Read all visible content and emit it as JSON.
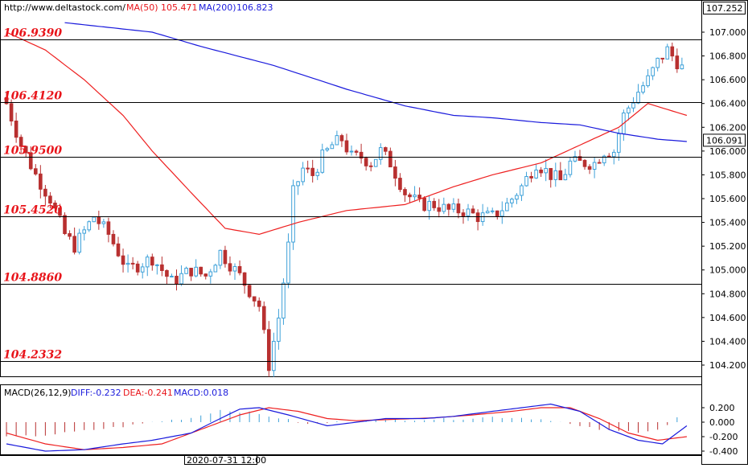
{
  "header": {
    "url": "http://www.deltastock.com/",
    "ma50_label": "MA(50)",
    "ma50_value": "105.471",
    "ma200_label": "MA(200)",
    "ma200_value": "106.823",
    "top_price": "107.252"
  },
  "macd_header": {
    "title": "MACD(26,12,9)",
    "diff": "DIFF:-0.232",
    "dea": "DEA:-0.241",
    "macd": "MACD:0.018"
  },
  "current_price": "106.091",
  "time_label": "2020-07-31 12:00",
  "colors": {
    "up": "#3ea1d9",
    "down": "#b83030",
    "ma50": "#ee2020",
    "ma200": "#1a1adc",
    "level": "#e8141a",
    "diff_line": "#1a1adc",
    "dea_line": "#ee2020",
    "hist_pos": "#3ea1d9",
    "hist_neg": "#b83030"
  },
  "chart_data": [
    {
      "type": "candlestick",
      "title": "",
      "ylim": [
        104.15,
        107.1
      ],
      "y_ticks": [
        "107.000",
        "106.800",
        "106.600",
        "106.400",
        "106.200",
        "106.000",
        "105.800",
        "105.600",
        "105.400",
        "105.200",
        "105.000",
        "104.800",
        "104.600",
        "104.400",
        "104.200"
      ],
      "levels": [
        "106.9390",
        "106.4120",
        "105.9500",
        "105.4520",
        "104.8860",
        "104.2332"
      ],
      "n_bars": 140,
      "close_anchors": [
        [
          0,
          106.4
        ],
        [
          3,
          106.05
        ],
        [
          6,
          105.8
        ],
        [
          9,
          105.6
        ],
        [
          12,
          105.3
        ],
        [
          14,
          105.2
        ],
        [
          18,
          105.45
        ],
        [
          21,
          105.3
        ],
        [
          25,
          105.0
        ],
        [
          30,
          105.1
        ],
        [
          34,
          104.9
        ],
        [
          38,
          105.0
        ],
        [
          41,
          104.95
        ],
        [
          44,
          105.15
        ],
        [
          48,
          104.95
        ],
        [
          52,
          104.7
        ],
        [
          54,
          104.2
        ],
        [
          56,
          104.6
        ],
        [
          58,
          105.2
        ],
        [
          59,
          105.65
        ],
        [
          61,
          105.85
        ],
        [
          63,
          105.8
        ],
        [
          65,
          105.95
        ],
        [
          67,
          106.05
        ],
        [
          69,
          106.1
        ],
        [
          71,
          105.95
        ],
        [
          73,
          105.95
        ],
        [
          75,
          105.9
        ],
        [
          77,
          106.0
        ],
        [
          79,
          105.9
        ],
        [
          82,
          105.65
        ],
        [
          85,
          105.55
        ],
        [
          88,
          105.55
        ],
        [
          91,
          105.5
        ],
        [
          94,
          105.5
        ],
        [
          97,
          105.45
        ],
        [
          100,
          105.45
        ],
        [
          103,
          105.55
        ],
        [
          106,
          105.7
        ],
        [
          109,
          105.9
        ],
        [
          112,
          105.8
        ],
        [
          114,
          105.75
        ],
        [
          116,
          105.9
        ],
        [
          118,
          105.9
        ],
        [
          121,
          105.9
        ],
        [
          123,
          106.0
        ],
        [
          125,
          106.0
        ],
        [
          127,
          106.3
        ],
        [
          130,
          106.5
        ],
        [
          132,
          106.6
        ],
        [
          134,
          106.75
        ],
        [
          136,
          106.85
        ],
        [
          137,
          106.8
        ],
        [
          140,
          106.65
        ],
        [
          143,
          106.55
        ]
      ],
      "ma50_anchors": [
        [
          0,
          107.0
        ],
        [
          8,
          106.85
        ],
        [
          16,
          106.6
        ],
        [
          24,
          106.3
        ],
        [
          30,
          106.0
        ],
        [
          38,
          105.65
        ],
        [
          45,
          105.35
        ],
        [
          52,
          105.3
        ],
        [
          60,
          105.4
        ],
        [
          70,
          105.5
        ],
        [
          82,
          105.55
        ],
        [
          92,
          105.7
        ],
        [
          100,
          105.8
        ],
        [
          110,
          105.9
        ],
        [
          118,
          106.05
        ],
        [
          126,
          106.2
        ],
        [
          132,
          106.4
        ],
        [
          140,
          106.3
        ]
      ],
      "ma200_anchors": [
        [
          12,
          107.08
        ],
        [
          30,
          107.0
        ],
        [
          40,
          106.88
        ],
        [
          55,
          106.72
        ],
        [
          70,
          106.52
        ],
        [
          82,
          106.38
        ],
        [
          92,
          106.3
        ],
        [
          100,
          106.28
        ],
        [
          110,
          106.24
        ],
        [
          118,
          106.22
        ],
        [
          126,
          106.15
        ],
        [
          134,
          106.1
        ],
        [
          140,
          106.08
        ]
      ]
    },
    {
      "type": "line",
      "title": "MACD(26,12,9)",
      "ylim": [
        -0.48,
        0.32
      ],
      "y_ticks": [
        "0.200",
        "0.000",
        "-0.200",
        "-0.400"
      ],
      "series": [
        {
          "name": "DIFF",
          "anchors": [
            [
              0,
              -0.3
            ],
            [
              8,
              -0.4
            ],
            [
              16,
              -0.38
            ],
            [
              24,
              -0.3
            ],
            [
              30,
              -0.25
            ],
            [
              38,
              -0.15
            ],
            [
              44,
              0.05
            ],
            [
              48,
              0.18
            ],
            [
              52,
              0.2
            ],
            [
              58,
              0.1
            ],
            [
              66,
              -0.05
            ],
            [
              72,
              0.0
            ],
            [
              78,
              0.05
            ],
            [
              86,
              0.05
            ],
            [
              92,
              0.08
            ],
            [
              100,
              0.15
            ],
            [
              106,
              0.2
            ],
            [
              112,
              0.25
            ],
            [
              118,
              0.15
            ],
            [
              124,
              -0.1
            ],
            [
              130,
              -0.25
            ],
            [
              135,
              -0.3
            ],
            [
              140,
              -0.05
            ]
          ]
        },
        {
          "name": "DEA",
          "anchors": [
            [
              0,
              -0.15
            ],
            [
              8,
              -0.3
            ],
            [
              16,
              -0.38
            ],
            [
              24,
              -0.35
            ],
            [
              32,
              -0.3
            ],
            [
              40,
              -0.1
            ],
            [
              48,
              0.1
            ],
            [
              54,
              0.2
            ],
            [
              60,
              0.15
            ],
            [
              66,
              0.05
            ],
            [
              72,
              0.02
            ],
            [
              80,
              0.04
            ],
            [
              88,
              0.06
            ],
            [
              96,
              0.1
            ],
            [
              104,
              0.15
            ],
            [
              110,
              0.2
            ],
            [
              116,
              0.2
            ],
            [
              122,
              0.05
            ],
            [
              128,
              -0.15
            ],
            [
              134,
              -0.25
            ],
            [
              140,
              -0.2
            ]
          ]
        },
        {
          "name": "MACD",
          "anchors": [
            [
              0,
              -0.35
            ],
            [
              8,
              -0.3
            ],
            [
              16,
              -0.2
            ],
            [
              24,
              -0.1
            ],
            [
              30,
              0.0
            ],
            [
              38,
              0.1
            ],
            [
              44,
              0.28
            ],
            [
              50,
              0.22
            ],
            [
              56,
              0.1
            ],
            [
              62,
              -0.05
            ],
            [
              70,
              0.02
            ],
            [
              78,
              0.05
            ],
            [
              86,
              0.06
            ],
            [
              94,
              0.08
            ],
            [
              100,
              0.12
            ],
            [
              106,
              0.1
            ],
            [
              112,
              0.05
            ],
            [
              118,
              -0.1
            ],
            [
              124,
              -0.2
            ],
            [
              130,
              -0.22
            ],
            [
              135,
              -0.15
            ],
            [
              138,
              0.1
            ],
            [
              140,
              0.15
            ]
          ]
        }
      ]
    }
  ]
}
